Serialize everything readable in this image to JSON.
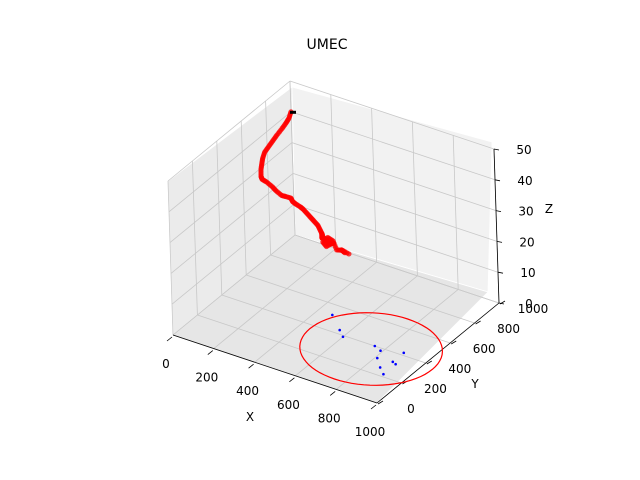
{
  "chart_data": {
    "type": "scatter3d",
    "title": "UMEC",
    "xlabel": "X",
    "ylabel": "Y",
    "zlabel": "Z",
    "xlim": [
      0,
      1000
    ],
    "ylim": [
      0,
      1000
    ],
    "zlim": [
      0,
      50
    ],
    "x_ticks": [
      "0",
      "200",
      "400",
      "600",
      "800",
      "1000"
    ],
    "y_ticks": [
      "0",
      "200",
      "400",
      "600",
      "800",
      "1000"
    ],
    "z_ticks": [
      "0",
      "10",
      "20",
      "30",
      "40",
      "50"
    ],
    "grid": true,
    "colors": {
      "trajectory": "#ff0000",
      "ground_points": "#0000ff",
      "circle": "#ff0000",
      "pane_back": "#f2f2f2",
      "pane_left": "#ebebeb",
      "pane_floor": "#e6e6e6",
      "grid": "#c8c8c8"
    },
    "series": [
      {
        "type": "trajectory",
        "points": [
          [
            0,
            1000,
            40
          ],
          [
            20,
            950,
            40
          ],
          [
            30,
            910,
            40
          ],
          [
            40,
            860,
            40
          ],
          [
            50,
            800,
            40
          ],
          [
            60,
            750,
            40
          ],
          [
            70,
            700,
            40
          ],
          [
            80,
            650,
            40
          ],
          [
            100,
            600,
            40
          ],
          [
            120,
            560,
            40
          ],
          [
            140,
            520,
            40
          ],
          [
            170,
            470,
            40
          ],
          [
            200,
            430,
            41
          ],
          [
            240,
            400,
            42
          ],
          [
            280,
            380,
            42
          ],
          [
            310,
            360,
            42
          ],
          [
            350,
            340,
            42
          ],
          [
            380,
            320,
            43
          ],
          [
            420,
            300,
            44
          ],
          [
            440,
            280,
            44
          ],
          [
            460,
            270,
            44
          ],
          [
            490,
            260,
            44
          ],
          [
            510,
            250,
            44
          ],
          [
            540,
            230,
            44
          ],
          [
            570,
            210,
            44
          ],
          [
            600,
            190,
            44
          ],
          [
            630,
            170,
            44
          ],
          [
            660,
            140,
            44
          ],
          [
            685,
            115,
            44
          ],
          [
            700,
            90,
            44
          ],
          [
            710,
            70,
            45
          ],
          [
            720,
            55,
            47
          ],
          [
            730,
            40,
            47
          ],
          [
            735,
            60,
            45
          ],
          [
            725,
            80,
            44
          ],
          [
            740,
            90,
            43
          ],
          [
            760,
            80,
            44
          ],
          [
            770,
            60,
            45
          ],
          [
            750,
            40,
            44
          ],
          [
            745,
            20,
            46
          ],
          [
            770,
            20,
            48
          ],
          [
            790,
            30,
            47
          ],
          [
            800,
            40,
            44
          ],
          [
            820,
            50,
            44
          ],
          [
            840,
            40,
            44
          ],
          [
            830,
            30,
            45
          ],
          [
            860,
            40,
            44
          ]
        ]
      },
      {
        "type": "ground-points",
        "points": [
          [
            470,
            520,
            0
          ],
          [
            560,
            430,
            0
          ],
          [
            600,
            390,
            0
          ],
          [
            750,
            400,
            0
          ],
          [
            790,
            380,
            0
          ],
          [
            810,
            320,
            0
          ],
          [
            860,
            260,
            0
          ],
          [
            880,
            330,
            0
          ],
          [
            900,
            320,
            0
          ],
          [
            880,
            420,
            0
          ],
          [
            900,
            220,
            0
          ]
        ]
      },
      {
        "type": "circle",
        "center": [
          750,
          370,
          0
        ],
        "radius": 300
      }
    ]
  }
}
